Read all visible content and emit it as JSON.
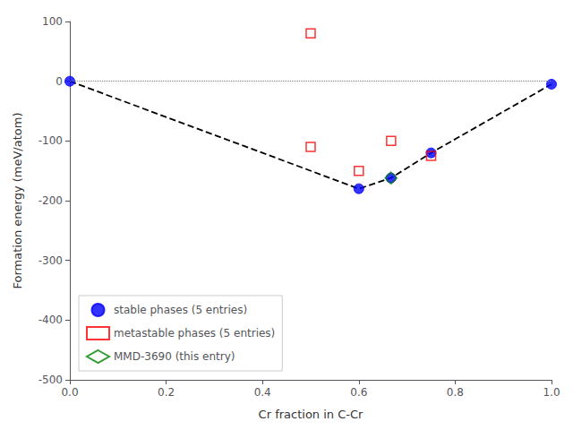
{
  "chart_data": {
    "type": "scatter",
    "xlabel": "Cr fraction in C-Cr",
    "ylabel": "Formation energy (meV/atom)",
    "xlim": [
      0.0,
      1.0
    ],
    "ylim": [
      -500,
      100
    ],
    "xticks": [
      {
        "value": 0.0,
        "label": "0.0"
      },
      0.2,
      0.4,
      0.6,
      0.8,
      {
        "value": 1.0,
        "label": "1.0"
      }
    ],
    "yticks": [
      100,
      0,
      -100,
      -200,
      -300,
      -400,
      -500
    ],
    "grid": false,
    "legend": "lower left",
    "reference_line": {
      "y": 0,
      "color": "gray",
      "line_style": "dotted"
    },
    "series": [
      {
        "type": "line",
        "color": "black",
        "line_style": "dashed",
        "x": [
          0.0,
          0.6,
          0.6667,
          0.75,
          1.0
        ],
        "values": [
          0.0,
          -180,
          -162,
          -120,
          -5
        ]
      },
      {
        "name": "stable phases (5 entries)",
        "type": "scatter",
        "color": "blue",
        "marker": "circle",
        "x": [
          0.0,
          0.6,
          0.6667,
          0.75,
          1.0
        ],
        "values": [
          0.0,
          -180,
          -162,
          -120,
          -5
        ]
      },
      {
        "name": "metastable phases (5 entries)",
        "type": "scatter",
        "color": "red",
        "marker": "open square",
        "x": [
          0.5,
          0.5,
          0.6,
          0.667,
          0.75
        ],
        "values": [
          80,
          -110,
          -150,
          -100,
          -125
        ]
      },
      {
        "name": "MMD-3690 (this entry)",
        "type": "scatter",
        "color": "green",
        "marker": "open diamond",
        "x": [
          0.6667
        ],
        "values": [
          -162
        ]
      }
    ]
  }
}
